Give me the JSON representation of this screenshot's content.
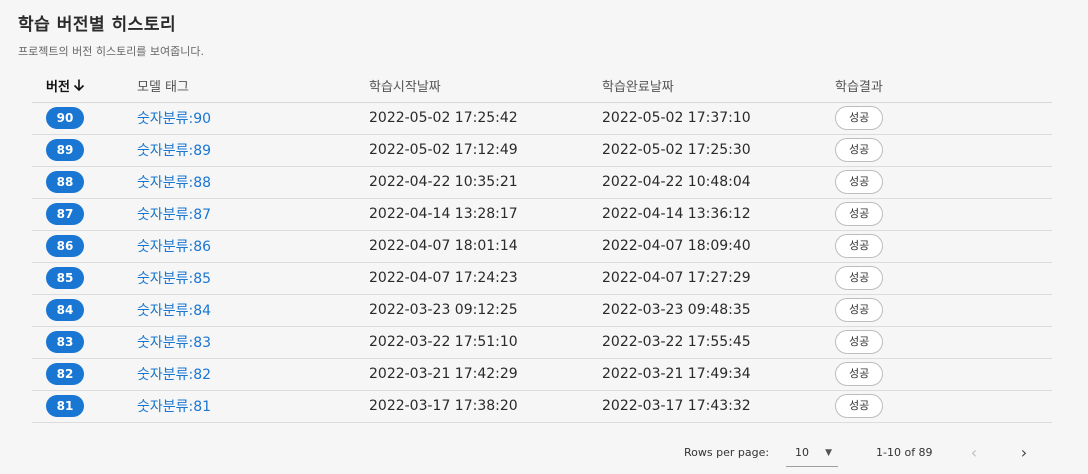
{
  "header": {
    "title": "학습 버전별 히스토리",
    "subtitle": "프로젝트의 버전 히스토리를 보여줍니다."
  },
  "table": {
    "columns": [
      "버전",
      "모델 태그",
      "학습시작날짜",
      "학습완료날짜",
      "학습결과"
    ],
    "sort_icon": "arrow-down-icon",
    "rows": [
      {
        "version": "90",
        "tag": "숫자분류:90",
        "start": "2022-05-02 17:25:42",
        "end": "2022-05-02 17:37:10",
        "result": "성공"
      },
      {
        "version": "89",
        "tag": "숫자분류:89",
        "start": "2022-05-02 17:12:49",
        "end": "2022-05-02 17:25:30",
        "result": "성공"
      },
      {
        "version": "88",
        "tag": "숫자분류:88",
        "start": "2022-04-22 10:35:21",
        "end": "2022-04-22 10:48:04",
        "result": "성공"
      },
      {
        "version": "87",
        "tag": "숫자분류:87",
        "start": "2022-04-14 13:28:17",
        "end": "2022-04-14 13:36:12",
        "result": "성공"
      },
      {
        "version": "86",
        "tag": "숫자분류:86",
        "start": "2022-04-07 18:01:14",
        "end": "2022-04-07 18:09:40",
        "result": "성공"
      },
      {
        "version": "85",
        "tag": "숫자분류:85",
        "start": "2022-04-07 17:24:23",
        "end": "2022-04-07 17:27:29",
        "result": "성공"
      },
      {
        "version": "84",
        "tag": "숫자분류:84",
        "start": "2022-03-23 09:12:25",
        "end": "2022-03-23 09:48:35",
        "result": "성공"
      },
      {
        "version": "83",
        "tag": "숫자분류:83",
        "start": "2022-03-22 17:51:10",
        "end": "2022-03-22 17:55:45",
        "result": "성공"
      },
      {
        "version": "82",
        "tag": "숫자분류:82",
        "start": "2022-03-21 17:42:29",
        "end": "2022-03-21 17:49:34",
        "result": "성공"
      },
      {
        "version": "81",
        "tag": "숫자분류:81",
        "start": "2022-03-17 17:38:20",
        "end": "2022-03-17 17:43:32",
        "result": "성공"
      }
    ]
  },
  "pagination": {
    "rows_per_page_label": "Rows per page:",
    "rows_per_page_value": "10",
    "range_text": "1-10 of 89",
    "prev_icon": "chevron-left-icon",
    "next_icon": "chevron-right-icon",
    "dropdown_icon": "caret-down-icon"
  },
  "colors": {
    "accent": "#1976d2",
    "background": "#f6f6f6"
  }
}
